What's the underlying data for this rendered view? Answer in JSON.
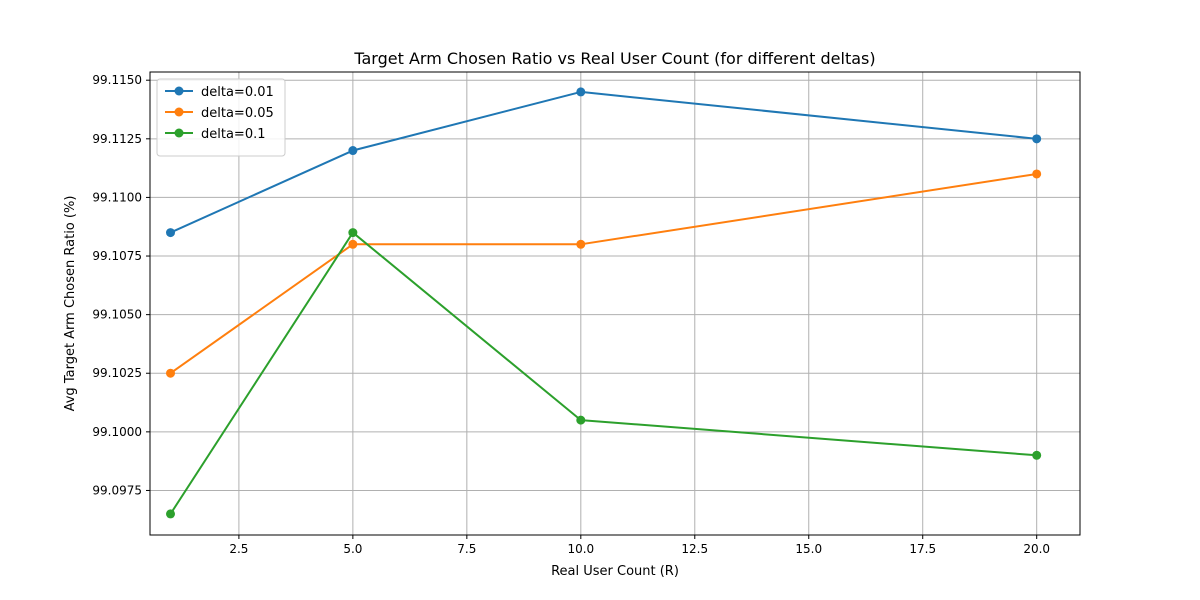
{
  "chart_data": {
    "type": "line",
    "title": "Target Arm Chosen Ratio vs Real User Count (for different deltas)",
    "xlabel": "Real User Count (R)",
    "ylabel": "Avg Target Arm Chosen Ratio (%)",
    "xlim": [
      0.55,
      20.95
    ],
    "ylim": [
      99.0956,
      99.11535
    ],
    "x_ticks": [
      2.5,
      5.0,
      7.5,
      10.0,
      12.5,
      15.0,
      17.5,
      20.0
    ],
    "x_tick_labels": [
      "2.5",
      "5.0",
      "7.5",
      "10.0",
      "12.5",
      "15.0",
      "17.5",
      "20.0"
    ],
    "y_ticks": [
      99.0975,
      99.1,
      99.1025,
      99.105,
      99.1075,
      99.11,
      99.1125,
      99.115
    ],
    "y_tick_labels": [
      "99.0975",
      "99.1000",
      "99.1025",
      "99.1050",
      "99.1075",
      "99.1100",
      "99.1125",
      "99.1150"
    ],
    "grid": true,
    "legend_position": "top-left",
    "x": [
      1,
      5,
      10,
      20
    ],
    "series": [
      {
        "name": "delta=0.01",
        "color": "#1f77b4",
        "values": [
          99.1085,
          99.112,
          99.1145,
          99.1125
        ]
      },
      {
        "name": "delta=0.05",
        "color": "#ff7f0e",
        "values": [
          99.1025,
          99.108,
          99.108,
          99.111
        ]
      },
      {
        "name": "delta=0.1",
        "color": "#2ca02c",
        "values": [
          99.0965,
          99.1085,
          99.1005,
          99.099
        ]
      }
    ]
  }
}
